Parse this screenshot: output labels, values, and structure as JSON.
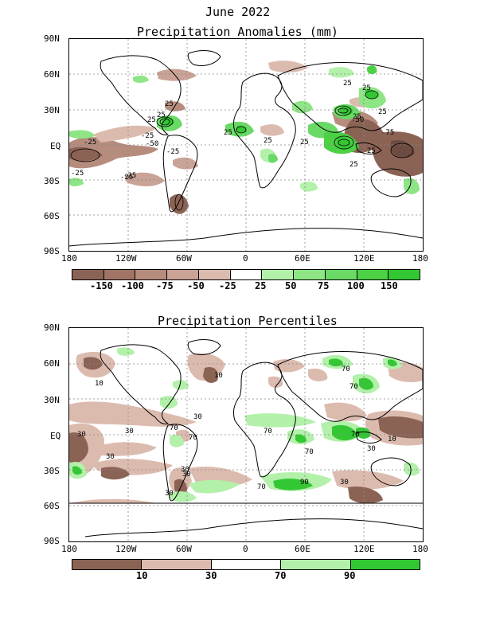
{
  "figure": {
    "title": "June 2022"
  },
  "panels": [
    {
      "id": "anomalies",
      "title": "Precipitation Anomalies (mm)",
      "lat_labels": [
        "90N",
        "60N",
        "30N",
        "EQ",
        "30S",
        "60S",
        "90S"
      ],
      "lon_labels": [
        "180",
        "120W",
        "60W",
        "0",
        "60E",
        "120E",
        "180"
      ],
      "contour_labels": [
        "25",
        "25",
        "25",
        "-25",
        "-25",
        "-50",
        "-25",
        "-25",
        "25",
        "25",
        "25",
        "25",
        "25",
        "25",
        "25",
        "-50",
        "-75",
        "25",
        "25",
        "-25",
        "-25"
      ],
      "colorbar": {
        "colors": [
          "#8b6355",
          "#a07565",
          "#b68c7d",
          "#c9a396",
          "#dcbbaf",
          "#ffffff",
          "#b3f0aa",
          "#8ee585",
          "#6ad966",
          "#4cd044",
          "#33c833"
        ],
        "labels": [
          "-150",
          "-100",
          "-75",
          "-50",
          "-25",
          "25",
          "50",
          "75",
          "100",
          "150"
        ]
      }
    },
    {
      "id": "percentiles",
      "title": "Precipitation Percentiles",
      "lat_labels": [
        "90N",
        "60N",
        "30N",
        "EQ",
        "30S",
        "60S",
        "90S"
      ],
      "lon_labels": [
        "180",
        "120W",
        "60W",
        "0",
        "60E",
        "120E",
        "180"
      ],
      "contour_labels": [
        "10",
        "10",
        "30",
        "30",
        "30",
        "70",
        "70",
        "30",
        "70",
        "70",
        "70",
        "70",
        "70",
        "10",
        "30",
        "30",
        "30",
        "90",
        "30",
        "70",
        "30"
      ],
      "colorbar": {
        "colors": [
          "#8b6355",
          "#dcbbaf",
          "#ffffff",
          "#b3f0aa",
          "#33c833"
        ],
        "labels": [
          "10",
          "30",
          "70",
          "90"
        ]
      }
    }
  ]
}
